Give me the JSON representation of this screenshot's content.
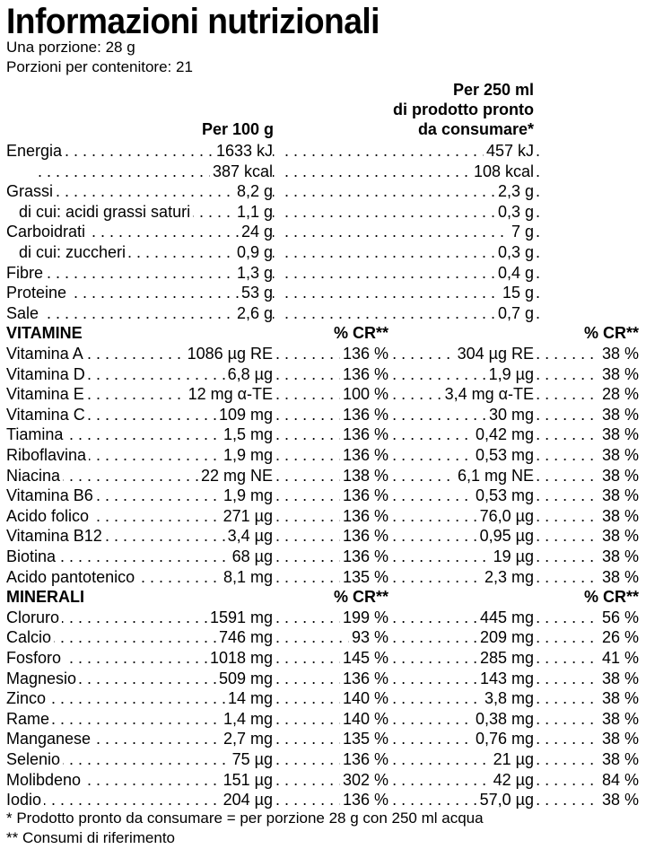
{
  "title": "Informazioni nutrizionali",
  "serving_size": "Una porzione: 28 g",
  "servings_per_container": "Porzioni per contenitore: 21",
  "col_header_100g": "Per 100 g",
  "col_header_250ml_line1": "Per 250 ml",
  "col_header_250ml_line2": "di prodotto pronto",
  "col_header_250ml_line3": "da consumare*",
  "nutrients": [
    {
      "label": "Energia",
      "indent": false,
      "v1": "1633 kJ",
      "v2": "457 kJ"
    },
    {
      "label": "",
      "indent": false,
      "v1": "387 kcal",
      "v2": "108 kcal"
    },
    {
      "label": "Grassi",
      "indent": false,
      "v1": "8,2 g",
      "v2": "2,3 g"
    },
    {
      "label": "di cui: acidi grassi saturi",
      "indent": true,
      "v1": "1,1 g",
      "v2": "0,3 g"
    },
    {
      "label": "Carboidrati",
      "indent": false,
      "v1": "24 g",
      "v2": "7 g"
    },
    {
      "label": "di cui: zuccheri",
      "indent": true,
      "v1": "0,9 g",
      "v2": "0,3 g"
    },
    {
      "label": "Fibre",
      "indent": false,
      "v1": "1,3 g",
      "v2": "0,4 g"
    },
    {
      "label": "Proteine",
      "indent": false,
      "v1": "53 g",
      "v2": "15 g"
    },
    {
      "label": "Sale",
      "indent": false,
      "v1": "2,6 g",
      "v2": "0,7 g"
    }
  ],
  "vitamins_heading": "VITAMINE",
  "cr_header": "% CR**",
  "vitamins": [
    {
      "label": "Vitamina A",
      "v1": "1086 µg RE",
      "c1": "136 %",
      "v2": "304 µg RE",
      "c2": "38 %"
    },
    {
      "label": "Vitamina D",
      "v1": "6,8 µg",
      "c1": "136 %",
      "v2": "1,9 µg",
      "c2": "38 %"
    },
    {
      "label": "Vitamina E",
      "v1": "12 mg α-TE",
      "c1": "100 %",
      "v2": "3,4 mg α-TE",
      "c2": "28 %"
    },
    {
      "label": "Vitamina C",
      "v1": "109 mg",
      "c1": "136 %",
      "v2": "30 mg",
      "c2": "38 %"
    },
    {
      "label": "Tiamina",
      "v1": "1,5 mg",
      "c1": "136 %",
      "v2": "0,42 mg",
      "c2": "38 %"
    },
    {
      "label": "Riboflavina",
      "v1": "1,9 mg",
      "c1": "136 %",
      "v2": "0,53 mg",
      "c2": "38 %"
    },
    {
      "label": "Niacina",
      "v1": "22 mg NE",
      "c1": "138 %",
      "v2": "6,1 mg NE",
      "c2": "38 %"
    },
    {
      "label": "Vitamina B6",
      "v1": "1,9 mg",
      "c1": "136 %",
      "v2": "0,53 mg",
      "c2": "38 %"
    },
    {
      "label": "Acido folico",
      "v1": "271 µg",
      "c1": "136 %",
      "v2": "76,0 µg",
      "c2": "38 %"
    },
    {
      "label": "Vitamina B12",
      "v1": "3,4 µg",
      "c1": "136 %",
      "v2": "0,95 µg",
      "c2": "38 %"
    },
    {
      "label": "Biotina",
      "v1": "68 µg",
      "c1": "136 %",
      "v2": "19 µg",
      "c2": "38 %"
    },
    {
      "label": "Acido pantotenico",
      "v1": "8,1 mg",
      "c1": "135 %",
      "v2": "2,3 mg",
      "c2": "38 %"
    }
  ],
  "minerals_heading": "MINERALI",
  "minerals": [
    {
      "label": "Cloruro",
      "v1": "1591 mg",
      "c1": "199 %",
      "v2": "445 mg",
      "c2": "56 %"
    },
    {
      "label": "Calcio",
      "v1": "746 mg",
      "c1": "93 %",
      "v2": "209 mg",
      "c2": "26 %"
    },
    {
      "label": "Fosforo",
      "v1": "1018 mg",
      "c1": "145 %",
      "v2": "285 mg",
      "c2": "41 %"
    },
    {
      "label": "Magnesio",
      "v1": "509 mg",
      "c1": "136 %",
      "v2": "143 mg",
      "c2": "38 %"
    },
    {
      "label": "Zinco",
      "v1": "14 mg",
      "c1": "140 %",
      "v2": "3,8 mg",
      "c2": "38 %"
    },
    {
      "label": "Rame",
      "v1": "1,4 mg",
      "c1": "140 %",
      "v2": "0,38 mg",
      "c2": "38 %"
    },
    {
      "label": "Manganese",
      "v1": "2,7 mg",
      "c1": "135 %",
      "v2": "0,76 mg",
      "c2": "38 %"
    },
    {
      "label": "Selenio",
      "v1": "75 µg",
      "c1": "136 %",
      "v2": "21 µg",
      "c2": "38 %"
    },
    {
      "label": "Molibdeno",
      "v1": "151 µg",
      "c1": "302 %",
      "v2": "42 µg",
      "c2": "84 %"
    },
    {
      "label": "Iodio",
      "v1": "204 µg",
      "c1": "136 %",
      "v2": "57,0 µg",
      "c2": "38 %"
    }
  ],
  "footnote1": " * Prodotto pronto da consumare = per porzione 28 g con 250 ml acqua",
  "footnote2": "** Consumi di riferimento"
}
